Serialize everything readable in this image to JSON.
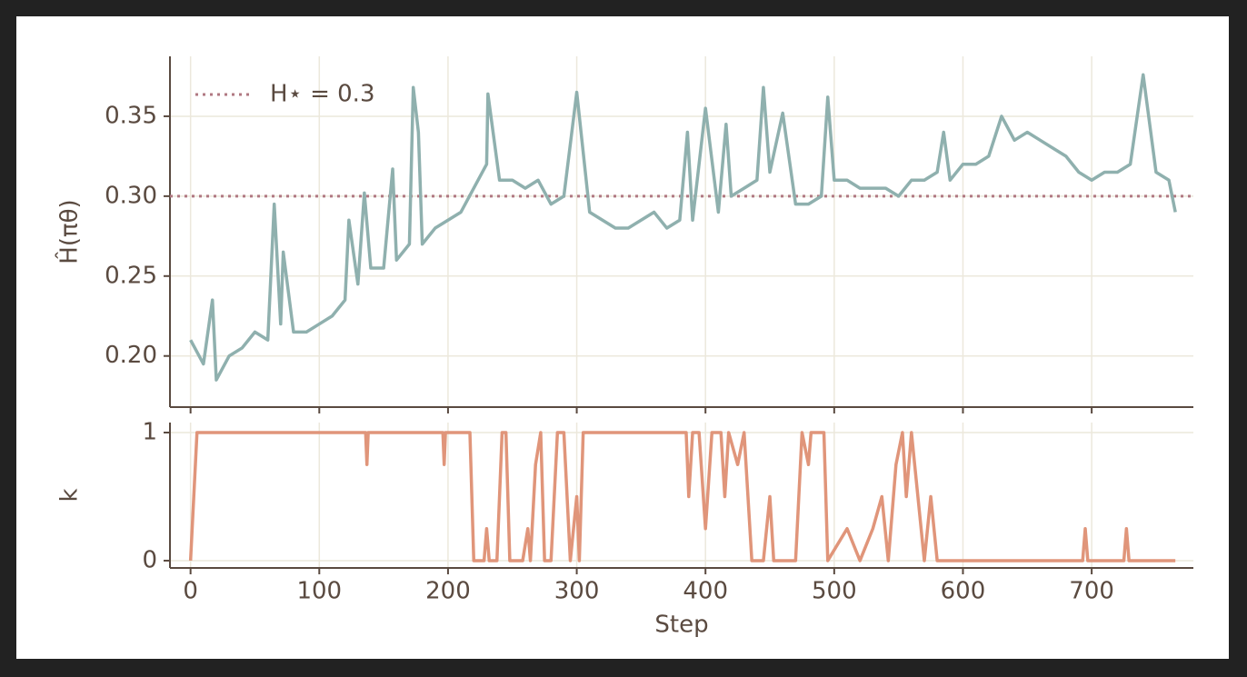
{
  "chart_data": [
    {
      "type": "line",
      "ylabel": "Ĥ(πθ)",
      "x": [
        0,
        10,
        17,
        20,
        30,
        40,
        50,
        60,
        65,
        70,
        72,
        80,
        90,
        100,
        110,
        120,
        123,
        130,
        135,
        140,
        150,
        157,
        160,
        170,
        173,
        177,
        180,
        190,
        200,
        210,
        220,
        230,
        231,
        240,
        250,
        260,
        270,
        280,
        290,
        300,
        310,
        320,
        330,
        340,
        350,
        360,
        370,
        380,
        386,
        390,
        400,
        410,
        416,
        420,
        430,
        440,
        445,
        450,
        460,
        470,
        480,
        490,
        495,
        500,
        510,
        520,
        530,
        540,
        550,
        560,
        570,
        580,
        585,
        590,
        600,
        610,
        620,
        630,
        640,
        650,
        660,
        670,
        680,
        690,
        700,
        710,
        720,
        730,
        740,
        750,
        760,
        765
      ],
      "series": [
        {
          "color": "#8fb0ae",
          "values": [
            0.21,
            0.195,
            0.235,
            0.185,
            0.2,
            0.205,
            0.215,
            0.21,
            0.295,
            0.22,
            0.265,
            0.215,
            0.215,
            0.22,
            0.225,
            0.235,
            0.285,
            0.245,
            0.302,
            0.255,
            0.255,
            0.317,
            0.26,
            0.27,
            0.368,
            0.34,
            0.27,
            0.28,
            0.285,
            0.29,
            0.305,
            0.32,
            0.364,
            0.31,
            0.31,
            0.305,
            0.31,
            0.295,
            0.3,
            0.365,
            0.29,
            0.285,
            0.28,
            0.28,
            0.285,
            0.29,
            0.28,
            0.285,
            0.34,
            0.285,
            0.355,
            0.29,
            0.345,
            0.3,
            0.305,
            0.31,
            0.368,
            0.315,
            0.352,
            0.295,
            0.295,
            0.3,
            0.362,
            0.31,
            0.31,
            0.305,
            0.305,
            0.305,
            0.3,
            0.31,
            0.31,
            0.315,
            0.34,
            0.31,
            0.32,
            0.32,
            0.325,
            0.35,
            0.335,
            0.34,
            0.335,
            0.33,
            0.325,
            0.315,
            0.31,
            0.315,
            0.315,
            0.32,
            0.376,
            0.315,
            0.31,
            0.29
          ]
        }
      ],
      "reference": {
        "name": "H⋆ = 0.3",
        "value": 0.3,
        "color": "#b07882"
      },
      "xlim": [
        -16,
        779
      ],
      "xticks": [
        0,
        100,
        200,
        300,
        400,
        500,
        600,
        700
      ],
      "ylim": [
        0.168,
        0.3875
      ],
      "yticks": [
        {
          "value": 0.2,
          "label": "0.20"
        },
        0.25,
        {
          "value": 0.3,
          "label": "0.30"
        },
        0.35
      ],
      "grid": true,
      "legend": "upper left"
    },
    {
      "type": "line",
      "xlabel": "Step",
      "ylabel": "k",
      "x": [
        0,
        5,
        136,
        137,
        138,
        196,
        197,
        198,
        217,
        220,
        228,
        230,
        232,
        238,
        242,
        245,
        248,
        258,
        262,
        264,
        268,
        272,
        275,
        280,
        285,
        290,
        295,
        300,
        302,
        305,
        385,
        387,
        390,
        395,
        400,
        405,
        412,
        415,
        418,
        425,
        430,
        436,
        445,
        450,
        453,
        470,
        475,
        480,
        482,
        492,
        495,
        510,
        520,
        530,
        537,
        542,
        548,
        553,
        556,
        560,
        565,
        570,
        575,
        580,
        693,
        695,
        697,
        725,
        727,
        729,
        765
      ],
      "series": [
        {
          "color": "#e0957a",
          "values": [
            0,
            1,
            1,
            0.75,
            1,
            1,
            0.75,
            1,
            1,
            0,
            0,
            0.25,
            0,
            0,
            1,
            1,
            0,
            0,
            0.25,
            0,
            0.75,
            1,
            0,
            0,
            1,
            1,
            0,
            0.5,
            0,
            1,
            1,
            0.5,
            1,
            1,
            0.25,
            1,
            1,
            0.5,
            1,
            0.75,
            1,
            0,
            0,
            0.5,
            0,
            0,
            1,
            0.75,
            1,
            1,
            0,
            0.25,
            0,
            0.25,
            0.5,
            0,
            0.75,
            1,
            0.5,
            1,
            0.5,
            0,
            0.5,
            0,
            0,
            0.25,
            0,
            0,
            0.25,
            0,
            0
          ]
        }
      ],
      "xlim": [
        -16,
        779
      ],
      "xticks": [
        0,
        100,
        200,
        300,
        400,
        500,
        600,
        700
      ],
      "ylim": [
        -0.057,
        1.078
      ],
      "yticks": [
        0,
        1
      ],
      "grid": true
    }
  ]
}
